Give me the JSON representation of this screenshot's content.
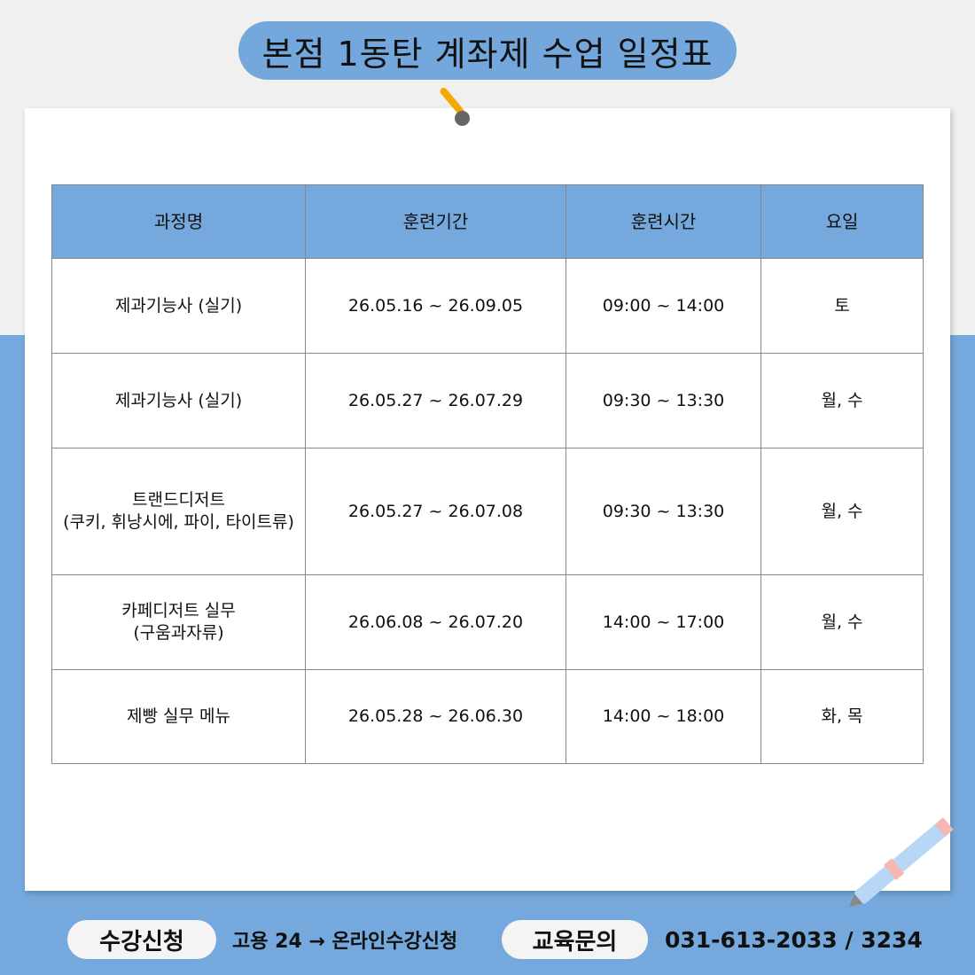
{
  "title": "본점 1동탄 계좌제 수업 일정표",
  "table": {
    "headers": [
      "과정명",
      "훈련기간",
      "훈련시간",
      "요일"
    ],
    "rows": [
      {
        "course": "제과기능사 (실기)",
        "course2": "",
        "period": "26.05.16 ~ 26.09.05",
        "time": "09:00 ~ 14:00",
        "days": "토"
      },
      {
        "course": "제과기능사 (실기)",
        "course2": "",
        "period": "26.05.27 ~ 26.07.29",
        "time": "09:30 ~ 13:30",
        "days": "월, 수"
      },
      {
        "course": "트랜드디저트",
        "course2": "(쿠키, 휘낭시에, 파이, 타이트류)",
        "period": "26.05.27 ~ 26.07.08",
        "time": "09:30 ~ 13:30",
        "days": "월, 수"
      },
      {
        "course": "카페디저트 실무",
        "course2": "(구움과자류)",
        "period": "26.06.08 ~ 26.07.20",
        "time": "14:00 ~ 17:00",
        "days": "월, 수"
      },
      {
        "course": "제빵 실무 메뉴",
        "course2": "",
        "period": "26.05.28 ~ 26.06.30",
        "time": "14:00 ~ 18:00",
        "days": "화, 목"
      }
    ]
  },
  "footer": {
    "apply_label": "수강신청",
    "apply_text": "고용 24 → 온라인수강신청",
    "contact_label": "교육문의",
    "contact_text": "031-613-2033 / 3234"
  },
  "colors": {
    "accent": "#75a8dc"
  }
}
